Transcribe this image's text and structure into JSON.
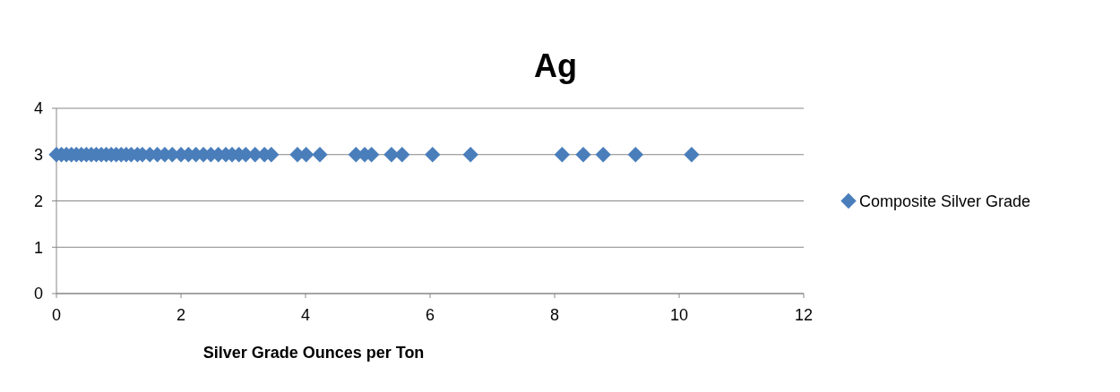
{
  "chart_data": {
    "type": "scatter",
    "title": "Ag",
    "xlabel": "Silver Grade Ounces per Ton",
    "xlim": [
      0,
      12
    ],
    "xticks": [
      0,
      2,
      4,
      6,
      8,
      10,
      12
    ],
    "ylim": [
      0,
      4
    ],
    "yticks": [
      0,
      1,
      2,
      3,
      4
    ],
    "grid": "y",
    "legend": "right",
    "marker": "diamond",
    "series": [
      {
        "name": "Composite Silver Grade",
        "color": "#4a7ebb",
        "x": [
          0,
          0.08,
          0.16,
          0.24,
          0.32,
          0.4,
          0.48,
          0.56,
          0.64,
          0.72,
          0.8,
          0.88,
          0.96,
          1.04,
          1.12,
          1.2,
          1.3,
          1.38,
          1.5,
          1.62,
          1.74,
          1.86,
          2.0,
          2.12,
          2.24,
          2.36,
          2.48,
          2.6,
          2.72,
          2.82,
          2.93,
          3.04,
          3.19,
          3.34,
          3.45,
          3.87,
          4.01,
          4.23,
          4.81,
          4.95,
          5.06,
          5.38,
          5.55,
          6.04,
          6.65,
          8.12,
          8.46,
          8.78,
          9.3,
          10.2
        ],
        "values": [
          3,
          3,
          3,
          3,
          3,
          3,
          3,
          3,
          3,
          3,
          3,
          3,
          3,
          3,
          3,
          3,
          3,
          3,
          3,
          3,
          3,
          3,
          3,
          3,
          3,
          3,
          3,
          3,
          3,
          3,
          3,
          3,
          3,
          3,
          3,
          3,
          3,
          3,
          3,
          3,
          3,
          3,
          3,
          3,
          3,
          3,
          3,
          3,
          3,
          3
        ]
      }
    ]
  }
}
